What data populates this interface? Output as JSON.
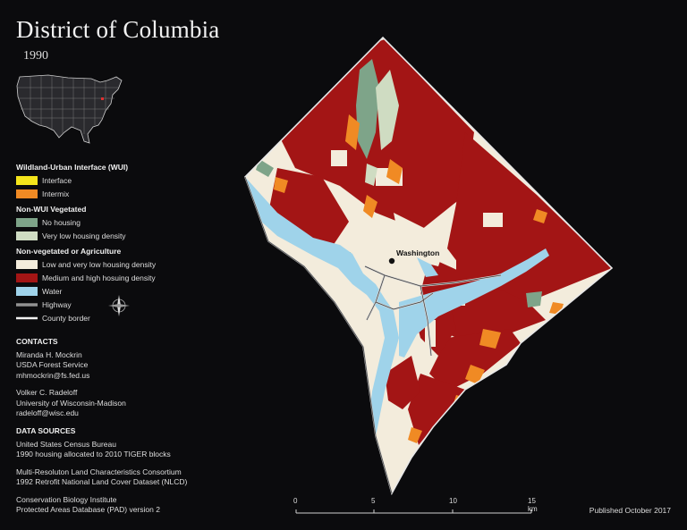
{
  "title": "District of Columbia",
  "year": "1990",
  "city_label": "Washington",
  "legend": {
    "groups": [
      {
        "heading": "Wildland-Urban Interface (WUI)",
        "items": [
          {
            "label": "Interface",
            "color": "#f5e51b"
          },
          {
            "label": "Intermix",
            "color": "#f08a24"
          }
        ]
      },
      {
        "heading": "Non-WUI Vegetated",
        "items": [
          {
            "label": "No housing",
            "color": "#7ea489"
          },
          {
            "label": "Very low housing density",
            "color": "#cfdcc2"
          }
        ]
      },
      {
        "heading": "Non-vegetated or Agriculture",
        "items": [
          {
            "label": "Low and very low housing density",
            "color": "#f3ecdc"
          },
          {
            "label": "Medium and high hosuing density",
            "color": "#a31515"
          },
          {
            "label": "Water",
            "color": "#9fd3ea"
          },
          {
            "label": "Highway",
            "color": "#cfcfcf"
          },
          {
            "label": "County border",
            "color": "#f2f2f2"
          }
        ]
      }
    ]
  },
  "contacts": {
    "heading": "CONTACTS",
    "people": [
      {
        "name": "Miranda H. Mockrin",
        "org": "USDA Forest Service",
        "email": "mhmockrin@fs.fed.us"
      },
      {
        "name": "Volker C. Radeloff",
        "org": "University of Wisconsin-Madison",
        "email": "radeloff@wisc.edu"
      }
    ]
  },
  "data_sources": {
    "heading": "DATA SOURCES",
    "entries": [
      {
        "line1": "United States Census Bureau",
        "line2": "1990 housing allocated to 2010 TIGER blocks"
      },
      {
        "line1": "Multi-Resoluton Land Characteristics Consortium",
        "line2": "1992 Retrofit National Land Cover Dataset (NLCD)"
      },
      {
        "line1": "Conservation Biology Institute",
        "line2": "Protected Areas Database (PAD) version 2"
      }
    ]
  },
  "scale": {
    "ticks": [
      "0",
      "5",
      "10",
      "15 km"
    ]
  },
  "published": "Published October 2017",
  "compass_icon": "compass-rose-icon"
}
